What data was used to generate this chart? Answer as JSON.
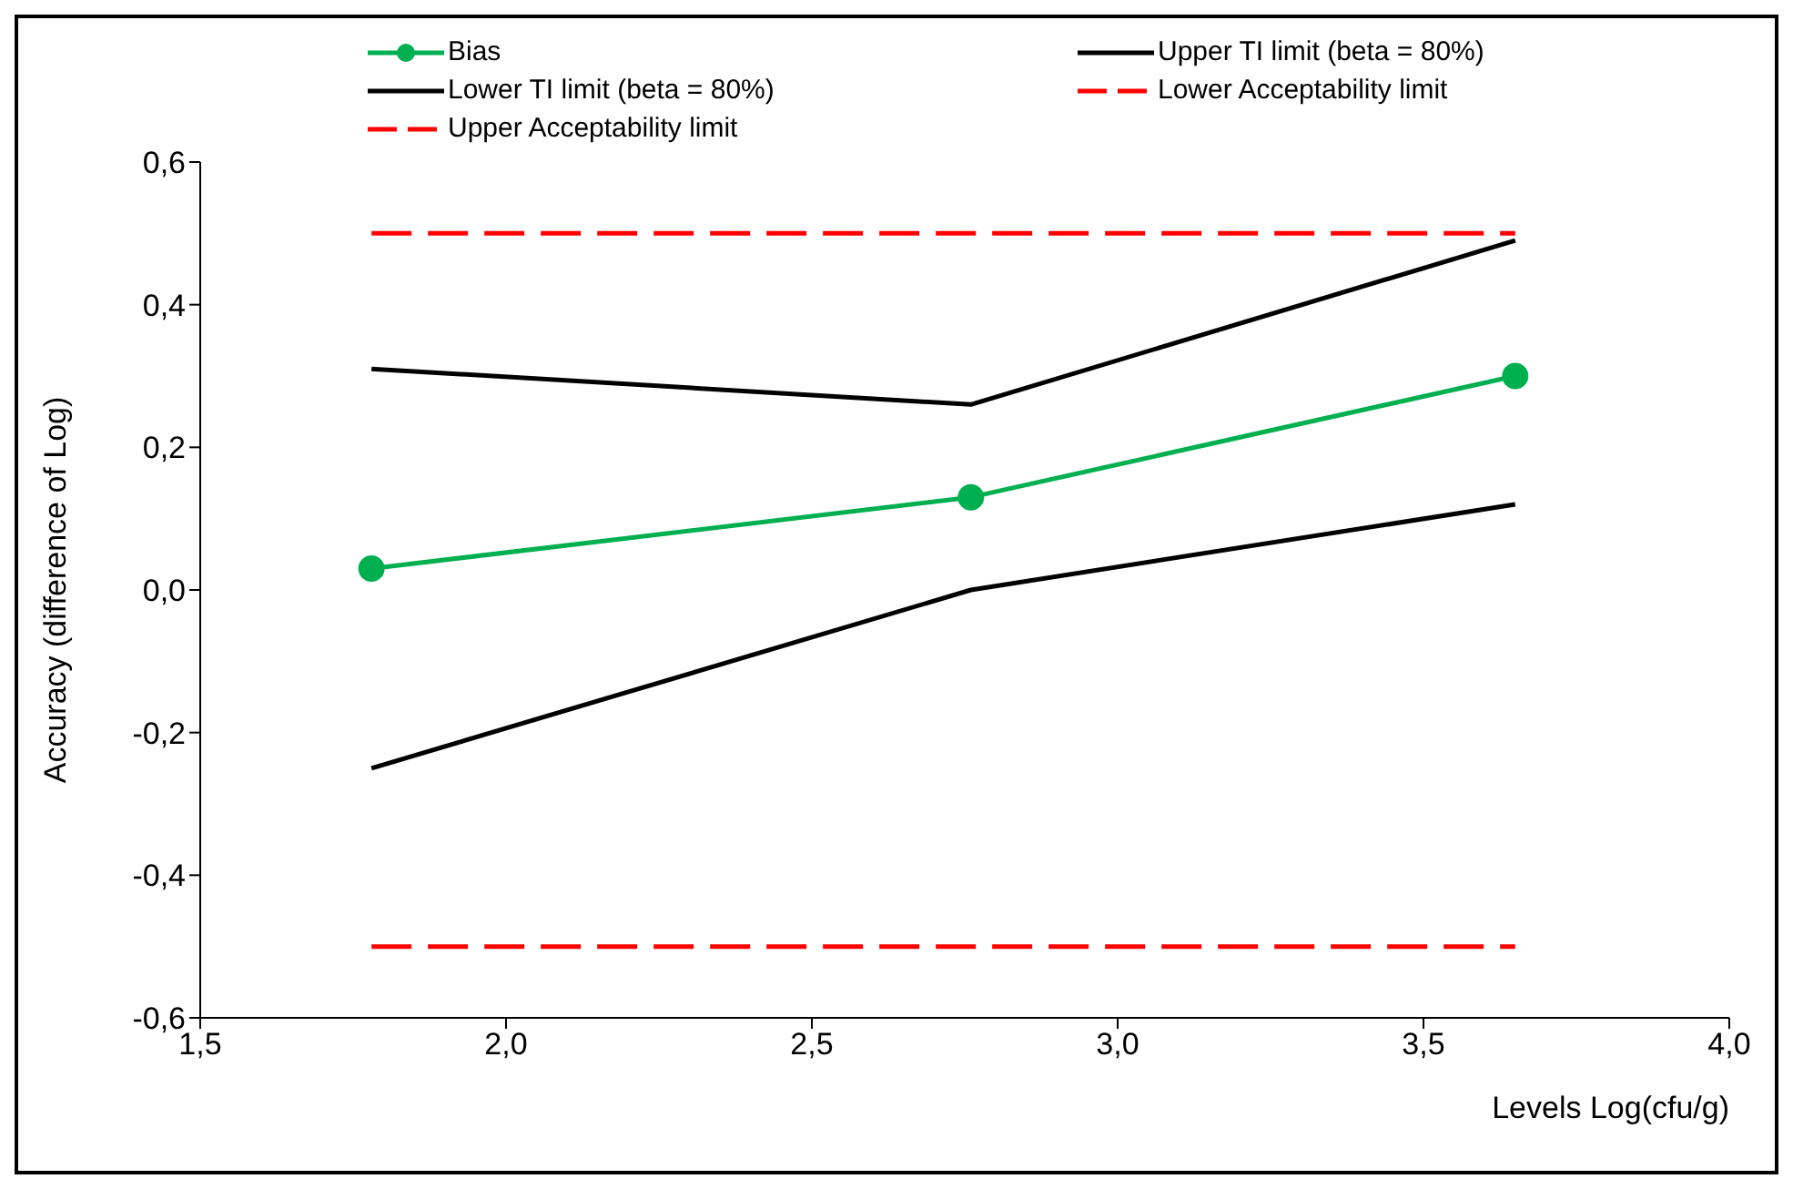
{
  "chart_data": {
    "type": "line",
    "xlabel": "Levels Log(cfu/g)",
    "ylabel": "Accuracy (difference of  Log)",
    "xlim": [
      1.5,
      4.0
    ],
    "xticks": [
      {
        "value": 1.5,
        "label": "1,5"
      },
      {
        "value": 2.0,
        "label": "2,0"
      },
      {
        "value": 2.5,
        "label": "2,5"
      },
      {
        "value": 3.0,
        "label": "3,0"
      },
      {
        "value": 3.5,
        "label": "3,5"
      },
      {
        "value": 4.0,
        "label": "4,0"
      }
    ],
    "ylim": [
      -0.6,
      0.6
    ],
    "yticks": [
      {
        "value": -0.6,
        "label": "-0,6"
      },
      {
        "value": -0.4,
        "label": "-0,4"
      },
      {
        "value": -0.2,
        "label": "-0,2"
      },
      {
        "value": 0,
        "label": "0,0"
      },
      {
        "value": 0.2,
        "label": "0,2"
      },
      {
        "value": 0.4,
        "label": "0,4"
      },
      {
        "value": 0.6,
        "label": "0,6"
      }
    ],
    "legend": "top",
    "series": [
      {
        "name": "Bias",
        "color": "#00b050",
        "marker": "circle",
        "line_style": "solid",
        "x": [
          1.78,
          2.76,
          3.65
        ],
        "values": [
          0.03,
          0.13,
          0.3
        ]
      },
      {
        "name": "Upper TI limit (beta = 80%)",
        "color": "#000000",
        "marker": "none",
        "line_style": "solid",
        "x": [
          1.78,
          2.76,
          3.65
        ],
        "values": [
          0.31,
          0.26,
          0.49
        ]
      },
      {
        "name": "Lower TI limit (beta = 80%)",
        "color": "#000000",
        "marker": "none",
        "line_style": "solid",
        "x": [
          1.78,
          2.76,
          3.65
        ],
        "values": [
          -0.25,
          0.0,
          0.12
        ]
      },
      {
        "name": "Lower Acceptability limit",
        "color": "#ff0000",
        "marker": "none",
        "line_style": "dashed",
        "x": [
          1.78,
          2.76,
          3.65
        ],
        "values": [
          -0.5,
          -0.5,
          -0.5
        ]
      },
      {
        "name": "Upper Acceptability limit",
        "color": "#ff0000",
        "marker": "none",
        "line_style": "dashed",
        "x": [
          1.78,
          2.76,
          3.65
        ],
        "values": [
          0.5,
          0.5,
          0.5
        ]
      }
    ]
  }
}
